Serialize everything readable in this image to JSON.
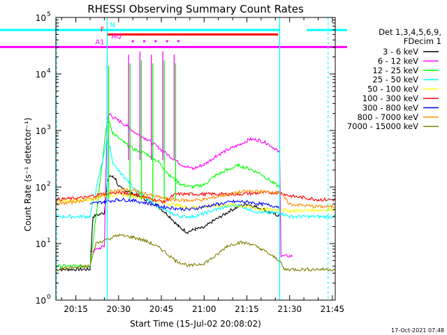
{
  "chart_data": {
    "type": "line",
    "title": "RHESSI Observing Summary Count Rates",
    "xlabel": "Start Time (15-Jul-02 20:08:02)",
    "ylabel": "Count Rate (s⁻¹ detector⁻¹)",
    "xlim": [
      8,
      106
    ],
    "ylim": [
      1,
      100000
    ],
    "yscale": "log",
    "x_unit": "minutes after 20:00",
    "x_ticks": [
      {
        "value": 15,
        "label": "20:15"
      },
      {
        "value": 30,
        "label": "20:30"
      },
      {
        "value": 45,
        "label": "20:45"
      },
      {
        "value": 60,
        "label": "21:00"
      },
      {
        "value": 75,
        "label": "21:15"
      },
      {
        "value": 90,
        "label": "21:30"
      },
      {
        "value": 105,
        "label": "21:45"
      }
    ],
    "y_ticks": [
      {
        "value": 1,
        "base": "10",
        "exp": "0"
      },
      {
        "value": 10,
        "base": "10",
        "exp": "1"
      },
      {
        "value": 100,
        "base": "10",
        "exp": "2"
      },
      {
        "value": 1000,
        "base": "10",
        "exp": "3"
      },
      {
        "value": 10000,
        "base": "10",
        "exp": "4"
      },
      {
        "value": 100000,
        "base": "10",
        "exp": "5"
      }
    ],
    "legend": {
      "header": [
        "Det 1,3,4,5,6,9,",
        "FDecim 1"
      ],
      "position": "right"
    },
    "series": [
      {
        "name": "3 - 6 keV",
        "color": "#000000",
        "points": [
          [
            8,
            3.5
          ],
          [
            20,
            3.5
          ],
          [
            21,
            30
          ],
          [
            25,
            35
          ],
          [
            26,
            120
          ],
          [
            27,
            160
          ],
          [
            28,
            150
          ],
          [
            29,
            140
          ],
          [
            30,
            100
          ],
          [
            33,
            85
          ],
          [
            36,
            70
          ],
          [
            40,
            60
          ],
          [
            44,
            45
          ],
          [
            48,
            30
          ],
          [
            51,
            20
          ],
          [
            54,
            16
          ],
          [
            57,
            18
          ],
          [
            60,
            19
          ],
          [
            63,
            25
          ],
          [
            66,
            30
          ],
          [
            69,
            38
          ],
          [
            72,
            45
          ],
          [
            75,
            50
          ],
          [
            78,
            45
          ],
          [
            81,
            40
          ],
          [
            83,
            35
          ],
          [
            85,
            33
          ],
          [
            86.5,
            31
          ]
        ]
      },
      {
        "name": "6 - 12 keV",
        "color": "#ff00ff",
        "points": [
          [
            20,
            7
          ],
          [
            25,
            9
          ],
          [
            26,
            1500
          ],
          [
            27,
            2000
          ],
          [
            28,
            1700
          ],
          [
            30,
            1500
          ],
          [
            33,
            1200
          ],
          [
            36,
            900
          ],
          [
            40,
            700
          ],
          [
            44,
            500
          ],
          [
            48,
            350
          ],
          [
            52,
            250
          ],
          [
            56,
            210
          ],
          [
            60,
            250
          ],
          [
            64,
            350
          ],
          [
            68,
            450
          ],
          [
            72,
            550
          ],
          [
            76,
            700
          ],
          [
            79,
            680
          ],
          [
            82,
            600
          ],
          [
            85,
            470
          ],
          [
            86.5,
            400
          ],
          [
            87,
            6
          ],
          [
            91,
            6
          ]
        ]
      },
      {
        "name": "12 - 25 keV",
        "color": "#00ff00",
        "points": [
          [
            8,
            4
          ],
          [
            20,
            4
          ],
          [
            26,
            1500
          ],
          [
            27,
            1300
          ],
          [
            28,
            900
          ],
          [
            32,
            600
          ],
          [
            36,
            450
          ],
          [
            40,
            380
          ],
          [
            44,
            280
          ],
          [
            48,
            160
          ],
          [
            52,
            110
          ],
          [
            56,
            100
          ],
          [
            60,
            110
          ],
          [
            64,
            160
          ],
          [
            68,
            200
          ],
          [
            72,
            240
          ],
          [
            76,
            210
          ],
          [
            80,
            170
          ],
          [
            84,
            120
          ],
          [
            86.5,
            100
          ]
        ]
      },
      {
        "name": "25 - 50 keV",
        "color": "#00ffff",
        "points": [
          [
            8,
            30
          ],
          [
            20,
            30
          ],
          [
            26,
            700
          ],
          [
            27,
            500
          ],
          [
            28,
            250
          ],
          [
            32,
            150
          ],
          [
            36,
            90
          ],
          [
            40,
            60
          ],
          [
            44,
            45
          ],
          [
            48,
            35
          ],
          [
            52,
            30
          ],
          [
            56,
            30
          ],
          [
            60,
            34
          ],
          [
            64,
            40
          ],
          [
            68,
            45
          ],
          [
            72,
            48
          ],
          [
            76,
            40
          ],
          [
            80,
            35
          ],
          [
            86.5,
            35
          ],
          [
            90,
            30
          ],
          [
            106,
            30
          ]
        ]
      },
      {
        "name": "50 - 100 keV",
        "color": "#ffff00",
        "points": [
          [
            8,
            55
          ],
          [
            20,
            60
          ],
          [
            25,
            70
          ],
          [
            30,
            75
          ],
          [
            35,
            70
          ],
          [
            40,
            65
          ],
          [
            45,
            55
          ],
          [
            50,
            48
          ],
          [
            55,
            43
          ],
          [
            60,
            45
          ],
          [
            65,
            47
          ],
          [
            70,
            48
          ],
          [
            75,
            45
          ],
          [
            80,
            40
          ],
          [
            86.5,
            40
          ],
          [
            90,
            38
          ],
          [
            106,
            40
          ]
        ]
      },
      {
        "name": "100 - 300 keV",
        "color": "#ff0000",
        "points": [
          [
            8,
            60
          ],
          [
            18,
            65
          ],
          [
            24,
            75
          ],
          [
            30,
            80
          ],
          [
            36,
            75
          ],
          [
            42,
            60
          ],
          [
            46,
            55
          ],
          [
            50,
            75
          ],
          [
            56,
            75
          ],
          [
            60,
            75
          ],
          [
            66,
            75
          ],
          [
            72,
            75
          ],
          [
            78,
            78
          ],
          [
            84,
            80
          ],
          [
            86.5,
            80
          ],
          [
            90,
            70
          ],
          [
            100,
            60
          ],
          [
            106,
            60
          ]
        ]
      },
      {
        "name": "300 - 800 keV",
        "color": "#0000ff",
        "points": [
          [
            20,
            50
          ],
          [
            25,
            55
          ],
          [
            30,
            60
          ],
          [
            35,
            58
          ],
          [
            40,
            52
          ],
          [
            45,
            45
          ],
          [
            50,
            42
          ],
          [
            55,
            40
          ],
          [
            60,
            45
          ],
          [
            65,
            50
          ],
          [
            70,
            55
          ],
          [
            75,
            55
          ],
          [
            80,
            50
          ],
          [
            86.5,
            45
          ]
        ]
      },
      {
        "name": "800 - 7000 keV",
        "color": "#ff8c00",
        "points": [
          [
            8,
            50
          ],
          [
            15,
            55
          ],
          [
            22,
            65
          ],
          [
            28,
            85
          ],
          [
            32,
            90
          ],
          [
            36,
            85
          ],
          [
            42,
            70
          ],
          [
            48,
            60
          ],
          [
            54,
            58
          ],
          [
            60,
            60
          ],
          [
            66,
            70
          ],
          [
            72,
            80
          ],
          [
            76,
            85
          ],
          [
            82,
            82
          ],
          [
            86.5,
            80
          ],
          [
            90,
            50
          ],
          [
            100,
            45
          ],
          [
            106,
            45
          ]
        ]
      },
      {
        "name": "7000 - 15000 keV",
        "color": "#808000",
        "points": [
          [
            8,
            3.5
          ],
          [
            20,
            4
          ],
          [
            22,
            10
          ],
          [
            26,
            12
          ],
          [
            30,
            14
          ],
          [
            35,
            13
          ],
          [
            40,
            11
          ],
          [
            45,
            8
          ],
          [
            50,
            5
          ],
          [
            55,
            4
          ],
          [
            60,
            4.5
          ],
          [
            64,
            6
          ],
          [
            68,
            9
          ],
          [
            72,
            10.5
          ],
          [
            76,
            10
          ],
          [
            80,
            8
          ],
          [
            84,
            6
          ],
          [
            86.5,
            5
          ],
          [
            88,
            3.5
          ],
          [
            106,
            3.5
          ]
        ]
      }
    ],
    "status_bars": [
      {
        "label": "N",
        "color": "#00ffff",
        "value": 60000,
        "segments": [
          [
            8,
            26
          ],
          [
            26,
            86.5
          ],
          [
            96,
            106
          ]
        ]
      },
      {
        "label": "F",
        "color": "#ff0000",
        "value": 50000,
        "segments": [
          [
            26,
            86
          ]
        ]
      },
      {
        "label": "A1",
        "color": "#ff00ff",
        "value": 30000,
        "segments": [
          [
            8,
            26
          ],
          [
            26,
            106
          ]
        ]
      },
      {
        "label": "AQ",
        "color": "#ff00ff",
        "value": 38000,
        "dots": [
          35,
          39,
          43,
          47,
          51
        ]
      }
    ],
    "vertical_markers": [
      {
        "x": 26,
        "color": "#00ffff"
      },
      {
        "x": 86.5,
        "color": "#00ffff"
      }
    ]
  },
  "footer": {
    "date": "17-Oct-2021 07:48"
  }
}
